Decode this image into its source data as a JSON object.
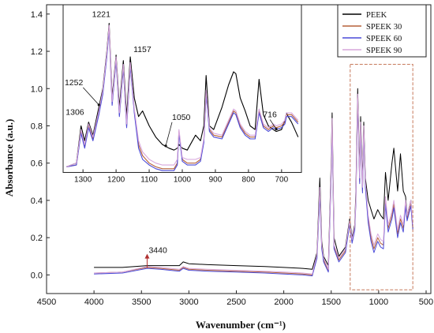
{
  "chart_data": {
    "type": "line",
    "xlabel": "Wavenumber (cm⁻¹)",
    "ylabel": "Absorbance (a.u.)",
    "xlim": [
      4500,
      450
    ],
    "ylim": [
      -0.1,
      1.45
    ],
    "x_ticks": [
      4500,
      4000,
      3500,
      3000,
      2500,
      2000,
      1500,
      1000,
      500
    ],
    "y_ticks": [
      0.0,
      0.2,
      0.4,
      0.6,
      0.8,
      1.0,
      1.2,
      1.4
    ],
    "legend_position": "top-right",
    "series": [
      {
        "name": "PEEK",
        "color": "#000000",
        "x": [
          4000,
          3700,
          3440,
          3300,
          3100,
          3060,
          3000,
          2800,
          2500,
          2200,
          2000,
          1800,
          1700,
          1650,
          1620,
          1600,
          1580,
          1530,
          1500,
          1490,
          1470,
          1420,
          1350,
          1306,
          1280,
          1252,
          1240,
          1221,
          1200,
          1190,
          1170,
          1157,
          1140,
          1110,
          1080,
          1050,
          1010,
          980,
          950,
          928,
          900,
          860,
          840,
          800,
          770,
          740,
          716,
          700,
          680,
          660,
          640
        ],
        "y": [
          0.04,
          0.04,
          0.05,
          0.05,
          0.05,
          0.07,
          0.06,
          0.055,
          0.05,
          0.045,
          0.04,
          0.035,
          0.03,
          0.12,
          0.52,
          0.18,
          0.1,
          0.05,
          0.6,
          0.87,
          0.2,
          0.1,
          0.15,
          0.3,
          0.2,
          0.27,
          0.45,
          1.0,
          0.55,
          0.85,
          0.5,
          0.82,
          0.52,
          0.4,
          0.35,
          0.3,
          0.35,
          0.32,
          0.3,
          0.55,
          0.4,
          0.6,
          0.68,
          0.45,
          0.65,
          0.45,
          0.42,
          0.32,
          0.36,
          0.4,
          0.25
        ]
      },
      {
        "name": "SPEEK 30",
        "color": "#b5613a",
        "x": [
          4000,
          3700,
          3440,
          3300,
          3100,
          3060,
          3000,
          2800,
          2500,
          2200,
          2000,
          1800,
          1700,
          1650,
          1620,
          1600,
          1580,
          1530,
          1500,
          1490,
          1470,
          1420,
          1350,
          1306,
          1280,
          1252,
          1240,
          1221,
          1200,
          1190,
          1170,
          1157,
          1140,
          1110,
          1080,
          1050,
          1010,
          980,
          950,
          928,
          900,
          860,
          840,
          800,
          770,
          740,
          716,
          700,
          680,
          660,
          640
        ],
        "y": [
          0.01,
          0.015,
          0.04,
          0.035,
          0.025,
          0.04,
          0.03,
          0.025,
          0.02,
          0.015,
          0.01,
          0.005,
          0.0,
          0.1,
          0.45,
          0.15,
          0.08,
          0.02,
          0.55,
          0.82,
          0.15,
          0.08,
          0.13,
          0.28,
          0.18,
          0.25,
          0.4,
          0.95,
          0.5,
          0.8,
          0.45,
          0.78,
          0.48,
          0.3,
          0.2,
          0.14,
          0.2,
          0.17,
          0.16,
          0.4,
          0.25,
          0.32,
          0.38,
          0.22,
          0.3,
          0.25,
          0.38,
          0.3,
          0.34,
          0.38,
          0.25
        ]
      },
      {
        "name": "SPEEK 60",
        "color": "#4a4ad8",
        "x": [
          4000,
          3700,
          3440,
          3300,
          3100,
          3060,
          3000,
          2800,
          2500,
          2200,
          2000,
          1800,
          1700,
          1650,
          1620,
          1600,
          1580,
          1530,
          1500,
          1490,
          1470,
          1420,
          1350,
          1306,
          1280,
          1252,
          1240,
          1221,
          1200,
          1190,
          1170,
          1157,
          1140,
          1110,
          1080,
          1050,
          1010,
          980,
          950,
          928,
          900,
          860,
          840,
          800,
          770,
          740,
          716,
          700,
          680,
          660,
          640
        ],
        "y": [
          0.005,
          0.01,
          0.035,
          0.03,
          0.02,
          0.035,
          0.025,
          0.02,
          0.015,
          0.01,
          0.005,
          0.0,
          -0.005,
          0.09,
          0.43,
          0.14,
          0.07,
          0.015,
          0.53,
          0.8,
          0.14,
          0.07,
          0.12,
          0.27,
          0.17,
          0.24,
          0.39,
          0.94,
          0.49,
          0.79,
          0.44,
          0.77,
          0.47,
          0.28,
          0.18,
          0.12,
          0.18,
          0.15,
          0.14,
          0.38,
          0.23,
          0.3,
          0.36,
          0.2,
          0.28,
          0.23,
          0.37,
          0.29,
          0.33,
          0.37,
          0.24
        ]
      },
      {
        "name": "SPEEK 90",
        "color": "#d7a6dc",
        "x": [
          4000,
          3700,
          3440,
          3300,
          3100,
          3060,
          3000,
          2800,
          2500,
          2200,
          2000,
          1800,
          1700,
          1650,
          1620,
          1600,
          1580,
          1530,
          1500,
          1490,
          1470,
          1420,
          1350,
          1306,
          1280,
          1252,
          1240,
          1221,
          1200,
          1190,
          1170,
          1157,
          1140,
          1110,
          1080,
          1050,
          1010,
          980,
          950,
          928,
          900,
          860,
          840,
          800,
          770,
          740,
          716,
          700,
          680,
          660,
          640
        ],
        "y": [
          0.01,
          0.015,
          0.045,
          0.04,
          0.03,
          0.045,
          0.035,
          0.03,
          0.025,
          0.02,
          0.015,
          0.01,
          0.005,
          0.11,
          0.47,
          0.16,
          0.09,
          0.03,
          0.57,
          0.84,
          0.16,
          0.09,
          0.14,
          0.29,
          0.19,
          0.26,
          0.41,
          0.97,
          0.52,
          0.82,
          0.47,
          0.8,
          0.5,
          0.32,
          0.22,
          0.16,
          0.22,
          0.19,
          0.18,
          0.42,
          0.27,
          0.34,
          0.4,
          0.24,
          0.32,
          0.27,
          0.4,
          0.32,
          0.36,
          0.4,
          0.27
        ]
      }
    ],
    "annotations": [
      {
        "label": "3440",
        "x": 3440,
        "y": 0.05
      }
    ],
    "inset": {
      "xlim": [
        1360,
        640
      ],
      "x_ticks": [
        1300,
        1200,
        1100,
        1000,
        900,
        800,
        700
      ],
      "series": [
        {
          "name": "PEEK",
          "color": "#000000",
          "x": [
            1350,
            1320,
            1306,
            1295,
            1283,
            1270,
            1252,
            1240,
            1228,
            1221,
            1212,
            1200,
            1190,
            1178,
            1168,
            1157,
            1145,
            1132,
            1120,
            1100,
            1080,
            1060,
            1040,
            1025,
            1015,
            1010,
            1000,
            985,
            960,
            945,
            935,
            928,
            918,
            905,
            880,
            860,
            845,
            838,
            825,
            810,
            795,
            780,
            768,
            755,
            740,
            725,
            716,
            700,
            690,
            685,
            680,
            670,
            660,
            650
          ],
          "y": [
            0.58,
            0.6,
            0.8,
            0.72,
            0.82,
            0.75,
            0.9,
            1.0,
            1.2,
            1.35,
            0.95,
            1.18,
            0.9,
            1.15,
            0.85,
            1.17,
            0.95,
            0.85,
            0.88,
            0.8,
            0.74,
            0.7,
            0.68,
            0.67,
            0.68,
            0.7,
            0.68,
            0.67,
            0.75,
            0.72,
            0.8,
            1.07,
            0.8,
            0.78,
            0.9,
            1.02,
            1.09,
            1.08,
            0.95,
            0.88,
            0.8,
            0.78,
            1.05,
            0.86,
            0.8,
            0.78,
            0.77,
            0.78,
            0.83,
            0.87,
            0.85,
            0.82,
            0.78,
            0.74
          ]
        },
        {
          "name": "SPEEK 30",
          "color": "#b5613a",
          "x": [
            1350,
            1320,
            1306,
            1295,
            1283,
            1270,
            1252,
            1240,
            1228,
            1221,
            1212,
            1200,
            1190,
            1178,
            1168,
            1157,
            1145,
            1132,
            1120,
            1100,
            1080,
            1060,
            1040,
            1025,
            1015,
            1010,
            1000,
            985,
            960,
            945,
            935,
            928,
            918,
            905,
            880,
            860,
            845,
            838,
            825,
            810,
            795,
            780,
            768,
            755,
            740,
            725,
            716,
            700,
            690,
            685,
            680,
            670,
            660,
            650
          ],
          "y": [
            0.58,
            0.59,
            0.77,
            0.69,
            0.8,
            0.73,
            0.87,
            0.98,
            1.18,
            1.33,
            0.92,
            1.16,
            0.86,
            1.12,
            0.8,
            1.13,
            0.88,
            0.7,
            0.64,
            0.6,
            0.58,
            0.57,
            0.57,
            0.57,
            0.6,
            0.77,
            0.62,
            0.6,
            0.6,
            0.62,
            0.72,
            0.98,
            0.78,
            0.75,
            0.74,
            0.82,
            0.88,
            0.87,
            0.8,
            0.76,
            0.74,
            0.74,
            0.88,
            0.8,
            0.78,
            0.8,
            0.79,
            0.8,
            0.82,
            0.86,
            0.86,
            0.86,
            0.84,
            0.82
          ]
        },
        {
          "name": "SPEEK 60",
          "color": "#4a4ad8",
          "x": [
            1350,
            1320,
            1306,
            1295,
            1283,
            1270,
            1252,
            1240,
            1228,
            1221,
            1212,
            1200,
            1190,
            1178,
            1168,
            1157,
            1145,
            1132,
            1120,
            1100,
            1080,
            1060,
            1040,
            1025,
            1015,
            1010,
            1000,
            985,
            960,
            945,
            935,
            928,
            918,
            905,
            880,
            860,
            845,
            838,
            825,
            810,
            795,
            780,
            768,
            755,
            740,
            725,
            716,
            700,
            690,
            685,
            680,
            670,
            660,
            650
          ],
          "y": [
            0.58,
            0.59,
            0.76,
            0.68,
            0.79,
            0.72,
            0.86,
            0.97,
            1.17,
            1.32,
            0.91,
            1.15,
            0.85,
            1.11,
            0.79,
            1.12,
            0.87,
            0.68,
            0.62,
            0.59,
            0.57,
            0.56,
            0.56,
            0.56,
            0.59,
            0.76,
            0.61,
            0.59,
            0.59,
            0.61,
            0.71,
            0.97,
            0.77,
            0.74,
            0.73,
            0.81,
            0.87,
            0.86,
            0.79,
            0.75,
            0.73,
            0.73,
            0.87,
            0.79,
            0.77,
            0.79,
            0.78,
            0.79,
            0.81,
            0.85,
            0.85,
            0.85,
            0.83,
            0.81
          ]
        },
        {
          "name": "SPEEK 90",
          "color": "#d7a6dc",
          "x": [
            1350,
            1320,
            1306,
            1295,
            1283,
            1270,
            1252,
            1240,
            1228,
            1221,
            1212,
            1200,
            1190,
            1178,
            1168,
            1157,
            1145,
            1132,
            1120,
            1100,
            1080,
            1060,
            1040,
            1025,
            1015,
            1010,
            1000,
            985,
            960,
            945,
            935,
            928,
            918,
            905,
            880,
            860,
            845,
            838,
            825,
            810,
            795,
            780,
            768,
            755,
            740,
            725,
            716,
            700,
            690,
            685,
            680,
            670,
            660,
            650
          ],
          "y": [
            0.58,
            0.6,
            0.78,
            0.7,
            0.81,
            0.74,
            0.88,
            0.99,
            1.19,
            1.34,
            0.93,
            1.17,
            0.87,
            1.13,
            0.81,
            1.14,
            0.89,
            0.72,
            0.66,
            0.62,
            0.6,
            0.59,
            0.59,
            0.59,
            0.62,
            0.78,
            0.63,
            0.62,
            0.62,
            0.63,
            0.73,
            0.99,
            0.79,
            0.76,
            0.75,
            0.83,
            0.89,
            0.88,
            0.81,
            0.77,
            0.75,
            0.75,
            0.89,
            0.81,
            0.79,
            0.81,
            0.8,
            0.81,
            0.83,
            0.87,
            0.87,
            0.87,
            0.85,
            0.83
          ]
        }
      ],
      "annotations": [
        {
          "label": "1221",
          "x": 1221,
          "y": 1.35
        },
        {
          "label": "1157",
          "x": 1157,
          "y": 1.17
        },
        {
          "label": "1252",
          "x": 1252,
          "y": 0.9
        },
        {
          "label": "1306",
          "x": 1306,
          "y": 0.8
        },
        {
          "label": "1050",
          "x": 1050,
          "y": 0.68
        },
        {
          "label": "716",
          "x": 716,
          "y": 0.77
        }
      ]
    }
  }
}
